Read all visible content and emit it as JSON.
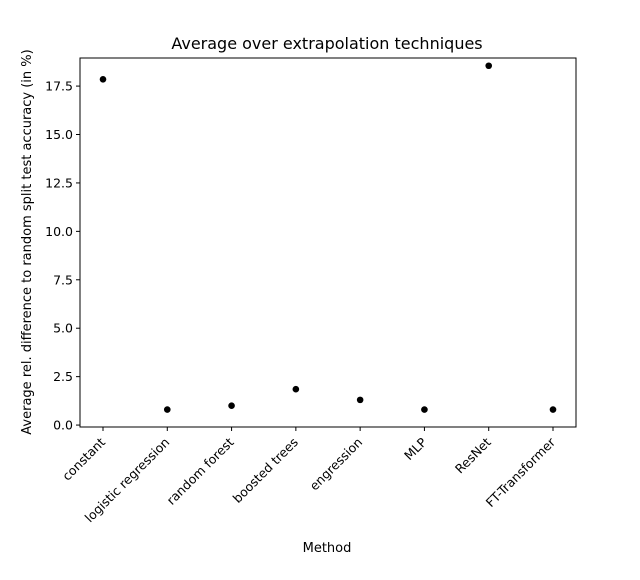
{
  "chart_data": {
    "type": "scatter",
    "title": "Average over extrapolation techniques",
    "xlabel": "Method",
    "ylabel": "Average rel. difference to random split test accuracy (in %)",
    "categories": [
      "constant",
      "logistic regression",
      "random forest",
      "boosted trees",
      "engression",
      "MLP",
      "ResNet",
      "FT-Transformer"
    ],
    "values": [
      17.85,
      0.8,
      1.0,
      1.85,
      1.3,
      0.8,
      18.55,
      0.8
    ],
    "ylim": [
      -0.1,
      18.95
    ],
    "yticks": [
      "0.0",
      "2.5",
      "5.0",
      "7.5",
      "10.0",
      "12.5",
      "15.0",
      "17.5"
    ],
    "marker_color": "#000000",
    "grid": false,
    "legend": false
  }
}
